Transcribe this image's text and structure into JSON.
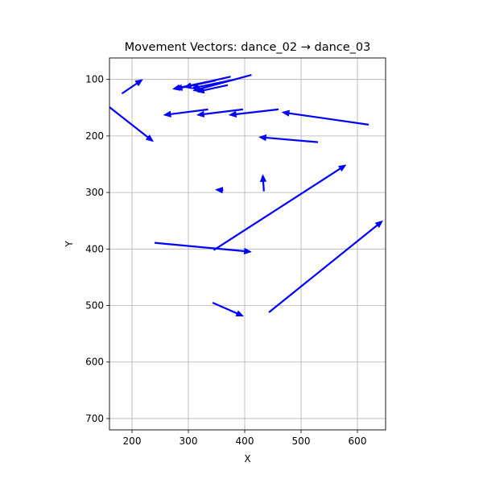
{
  "chart_data": {
    "type": "quiver",
    "title": "Movement Vectors: dance_02 → dance_03",
    "xlabel": "X",
    "ylabel": "Y",
    "xlim": [
      160,
      650
    ],
    "ylim": [
      720,
      62
    ],
    "y_inverted": true,
    "grid": true,
    "xticks": [
      200,
      300,
      400,
      500,
      600
    ],
    "yticks": [
      100,
      200,
      300,
      400,
      500,
      600,
      700
    ],
    "color": "#0000ff",
    "vectors": [
      {
        "x0": 182,
        "y0": 125,
        "x1": 219,
        "y1": 100
      },
      {
        "x0": 160,
        "y0": 149,
        "x1": 238,
        "y1": 210
      },
      {
        "x0": 348,
        "y0": 102,
        "x1": 276,
        "y1": 117
      },
      {
        "x0": 375,
        "y0": 95,
        "x1": 292,
        "y1": 114
      },
      {
        "x0": 412,
        "y0": 92,
        "x1": 308,
        "y1": 120
      },
      {
        "x0": 383,
        "y0": 100,
        "x1": 305,
        "y1": 116
      },
      {
        "x0": 335,
        "y0": 104,
        "x1": 272,
        "y1": 117
      },
      {
        "x0": 370,
        "y0": 110,
        "x1": 315,
        "y1": 122
      },
      {
        "x0": 335,
        "y0": 153,
        "x1": 256,
        "y1": 163
      },
      {
        "x0": 397,
        "y0": 153,
        "x1": 315,
        "y1": 163
      },
      {
        "x0": 460,
        "y0": 153,
        "x1": 372,
        "y1": 163
      },
      {
        "x0": 620,
        "y0": 180,
        "x1": 466,
        "y1": 158
      },
      {
        "x0": 530,
        "y0": 211,
        "x1": 425,
        "y1": 202
      },
      {
        "x0": 345,
        "y0": 402,
        "x1": 580,
        "y1": 251
      },
      {
        "x0": 434,
        "y0": 298,
        "x1": 432,
        "y1": 268
      },
      {
        "x0": 362,
        "y0": 296,
        "x1": 348,
        "y1": 295
      },
      {
        "x0": 240,
        "y0": 389,
        "x1": 412,
        "y1": 405
      },
      {
        "x0": 343,
        "y0": 495,
        "x1": 398,
        "y1": 519
      },
      {
        "x0": 443,
        "y0": 512,
        "x1": 645,
        "y1": 350
      }
    ]
  }
}
